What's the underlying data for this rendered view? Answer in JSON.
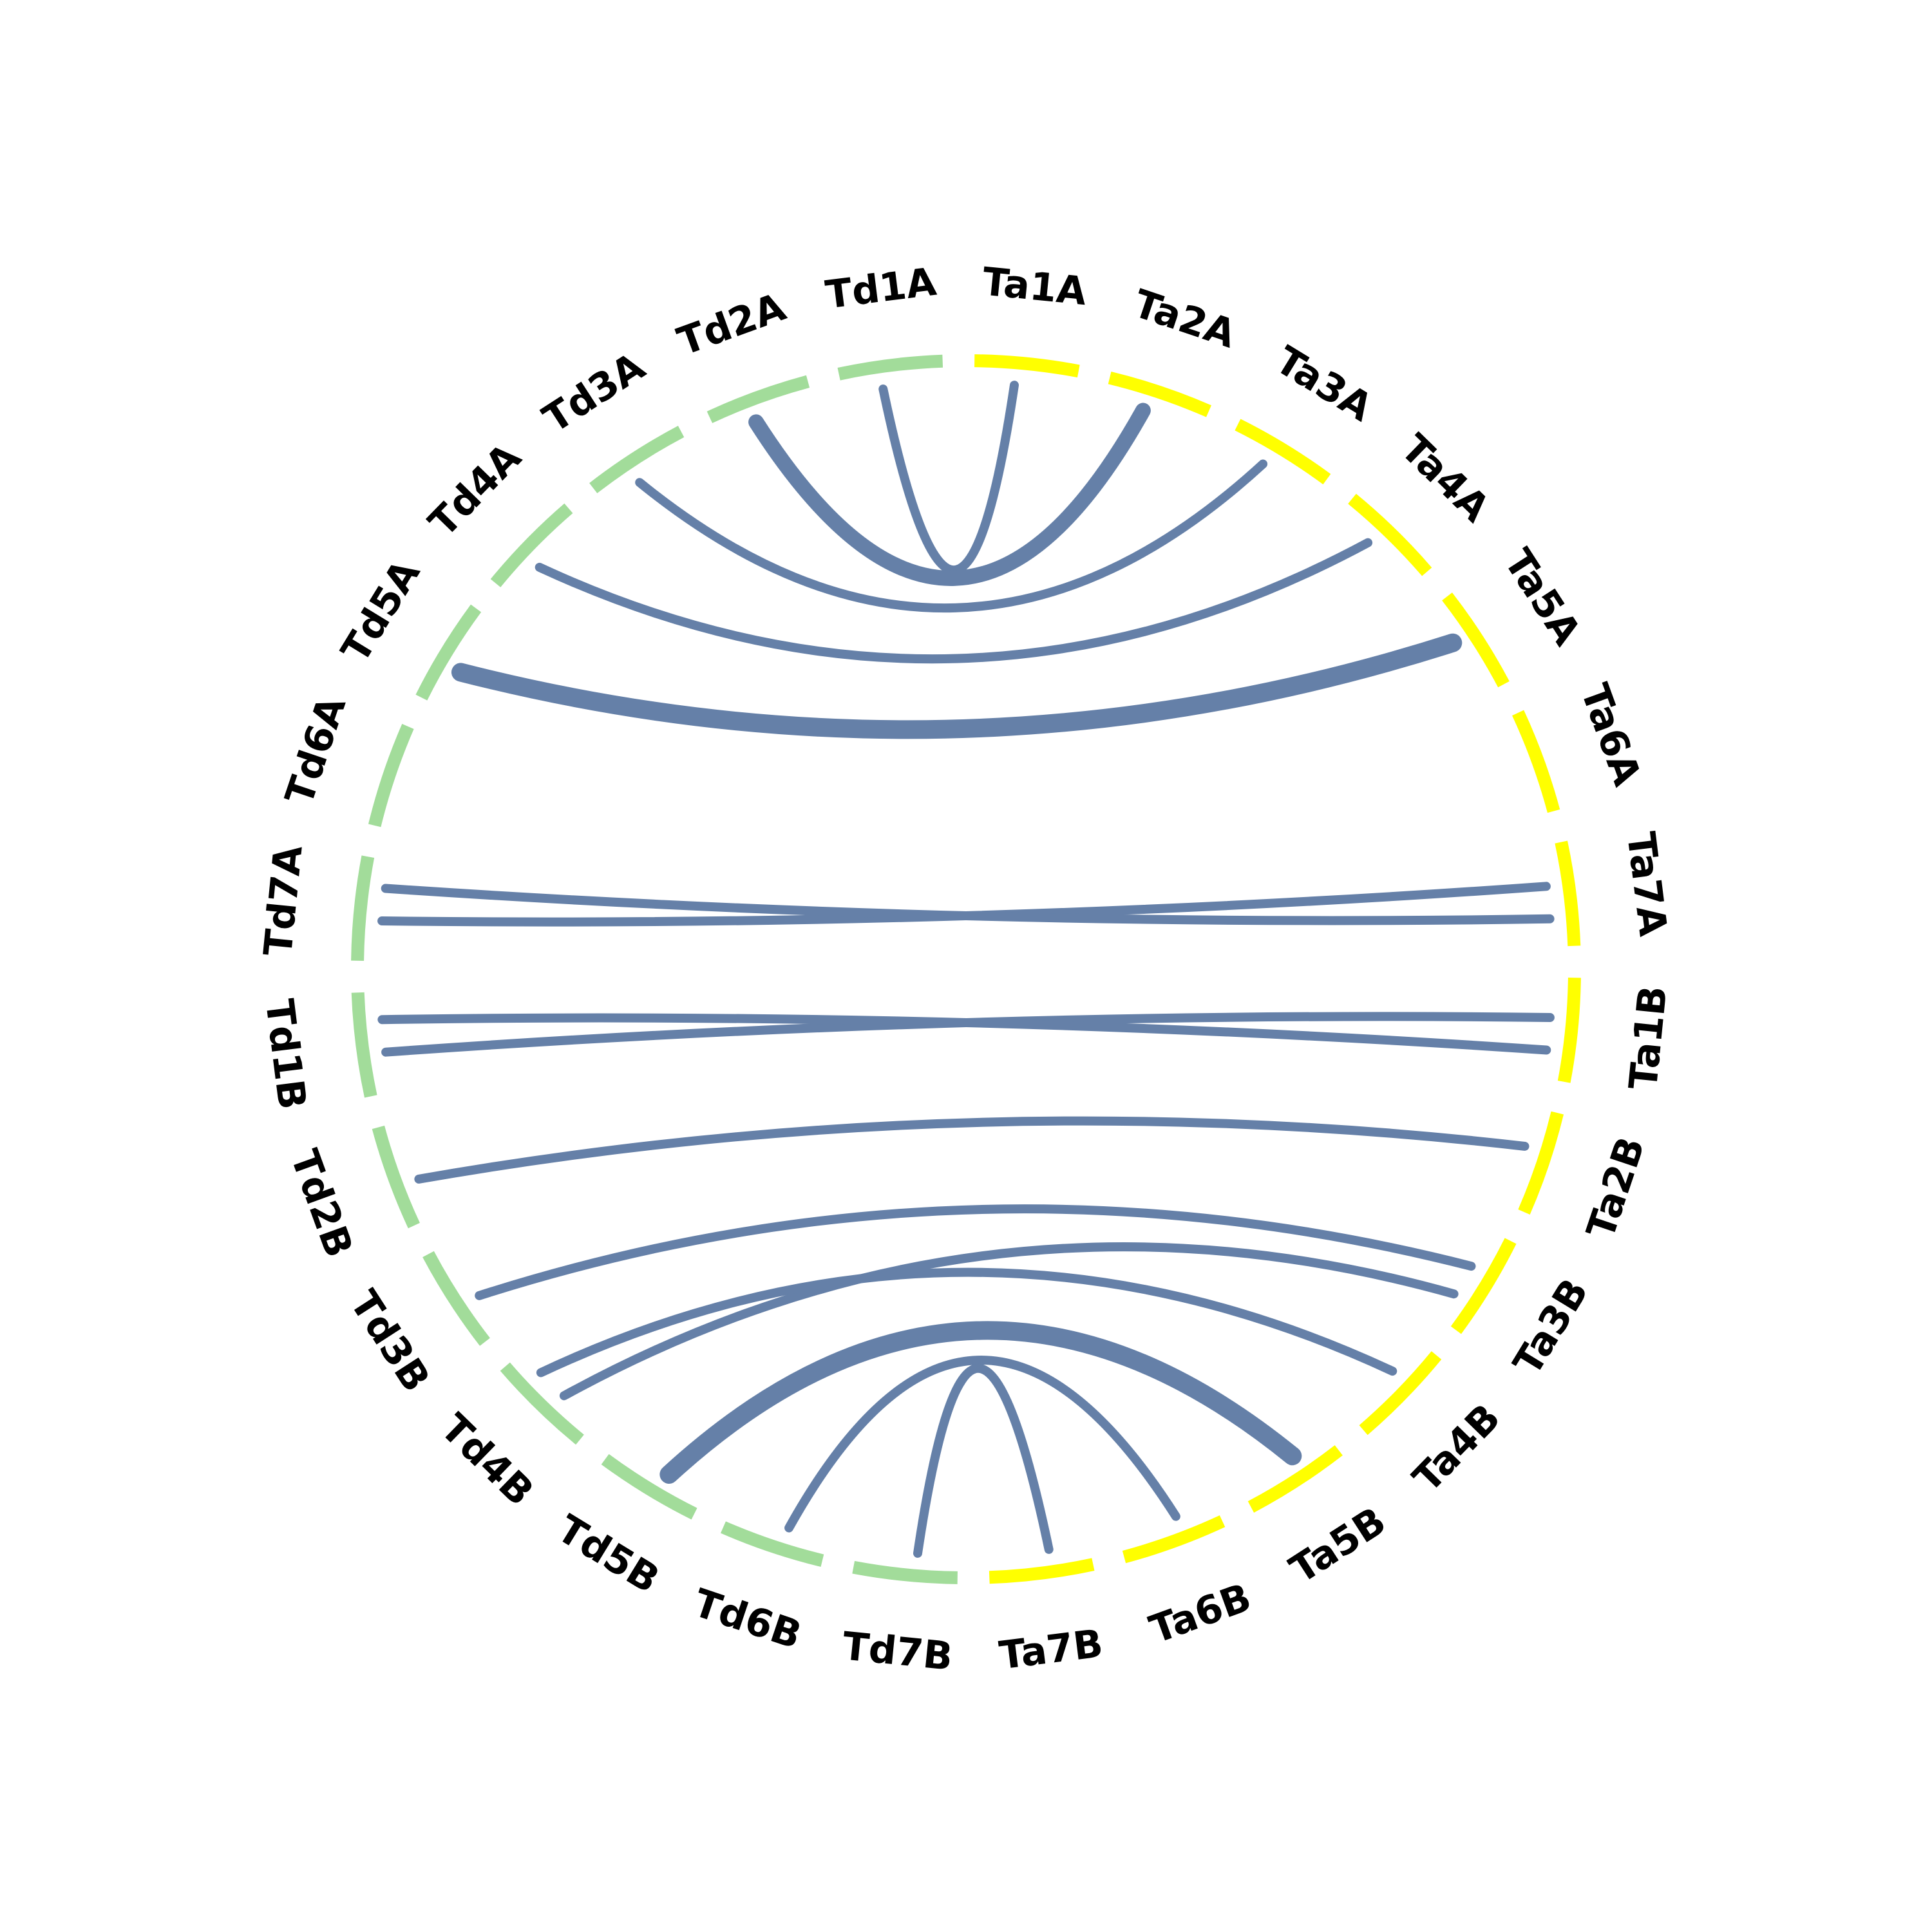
{
  "chart_data": {
    "type": "chord",
    "segments": [
      {
        "name": "Ta1A",
        "genome": "Ta"
      },
      {
        "name": "Ta2A",
        "genome": "Ta"
      },
      {
        "name": "Ta3A",
        "genome": "Ta"
      },
      {
        "name": "Ta4A",
        "genome": "Ta"
      },
      {
        "name": "Ta5A",
        "genome": "Ta"
      },
      {
        "name": "Ta6A",
        "genome": "Ta"
      },
      {
        "name": "Ta7A",
        "genome": "Ta"
      },
      {
        "name": "Ta1B",
        "genome": "Ta"
      },
      {
        "name": "Ta2B",
        "genome": "Ta"
      },
      {
        "name": "Ta3B",
        "genome": "Ta"
      },
      {
        "name": "Ta4B",
        "genome": "Ta"
      },
      {
        "name": "Ta5B",
        "genome": "Ta"
      },
      {
        "name": "Ta6B",
        "genome": "Ta"
      },
      {
        "name": "Ta7B",
        "genome": "Ta"
      },
      {
        "name": "Td7B",
        "genome": "Td"
      },
      {
        "name": "Td6B",
        "genome": "Td"
      },
      {
        "name": "Td5B",
        "genome": "Td"
      },
      {
        "name": "Td4B",
        "genome": "Td"
      },
      {
        "name": "Td3B",
        "genome": "Td"
      },
      {
        "name": "Td2B",
        "genome": "Td"
      },
      {
        "name": "Td1B",
        "genome": "Td"
      },
      {
        "name": "Td7A",
        "genome": "Td"
      },
      {
        "name": "Td6A",
        "genome": "Td"
      },
      {
        "name": "Td5A",
        "genome": "Td"
      },
      {
        "name": "Td4A",
        "genome": "Td"
      },
      {
        "name": "Td3A",
        "genome": "Td"
      },
      {
        "name": "Td2A",
        "genome": "Td"
      },
      {
        "name": "Td1A",
        "genome": "Td"
      }
    ],
    "colors": {
      "Ta": "#ffff00",
      "Td": "#a2dc9a",
      "link": "#6580a8"
    },
    "links": [
      {
        "from": "Td1A",
        "to": "Ta1A",
        "weight": 1
      },
      {
        "from": "Td2A",
        "to": "Ta2A",
        "weight": 3
      },
      {
        "from": "Td3A",
        "to": "Ta3A",
        "weight": 1
      },
      {
        "from": "Td4A",
        "to": "Ta4A",
        "weight": 1
      },
      {
        "from": "Td5A",
        "to": "Ta5A",
        "weight": 4
      },
      {
        "from": "Td7A",
        "to": "Ta7A",
        "weight": 1
      },
      {
        "from": "Td7A",
        "to": "Ta7A",
        "weight": 1
      },
      {
        "from": "Td1B",
        "to": "Ta1B",
        "weight": 1
      },
      {
        "from": "Td1B",
        "to": "Ta1B",
        "weight": 1
      },
      {
        "from": "Td2B",
        "to": "Ta2B",
        "weight": 1
      },
      {
        "from": "Td3B",
        "to": "Ta3B",
        "weight": 1
      },
      {
        "from": "Td4B",
        "to": "Ta3B",
        "weight": 1
      },
      {
        "from": "Td4B",
        "to": "Ta4B",
        "weight": 1
      },
      {
        "from": "Td5B",
        "to": "Ta5B",
        "weight": 4
      },
      {
        "from": "Td6B",
        "to": "Ta6B",
        "weight": 1
      },
      {
        "from": "Td7B",
        "to": "Ta7B",
        "weight": 1
      }
    ]
  }
}
